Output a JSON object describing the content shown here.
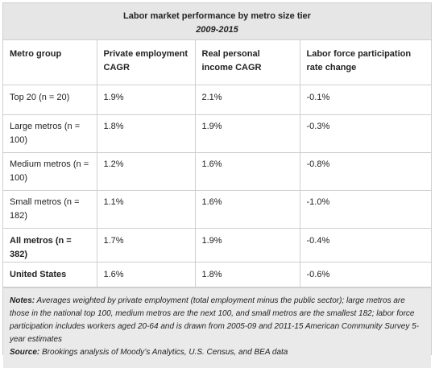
{
  "title": "Labor market performance by metro size tier",
  "subtitle": "2009-2015",
  "headers": [
    "Metro group",
    "Private employment CAGR",
    "Real personal income CAGR",
    "Labor force participation rate change"
  ],
  "rows": [
    {
      "group": "Top 20 (n = 20)",
      "emp": "1.9%",
      "income": "2.1%",
      "lfp": "-0.1%"
    },
    {
      "group": "Large metros (n = 100)",
      "emp": "1.8%",
      "income": "1.9%",
      "lfp": "-0.3%"
    },
    {
      "group": "Medium metros (n = 100)",
      "emp": "1.2%",
      "income": "1.6%",
      "lfp": "-0.8%"
    },
    {
      "group": "Small metros (n = 182)",
      "emp": "1.1%",
      "income": "1.6%",
      "lfp": "-1.0%"
    },
    {
      "group": "All metros (n = 382)",
      "emp": "1.7%",
      "income": "1.9%",
      "lfp": "-0.4%"
    },
    {
      "group": "United States",
      "emp": "1.6%",
      "income": "1.8%",
      "lfp": "-0.6%"
    }
  ],
  "notes": {
    "label": "Notes:",
    "text": "Averages weighted by private employment (total employment minus the public sector); large metros are those in the national top 100, medium metros are the next 100, and small metros are the smallest 182; labor force participation includes workers aged 20-64 and is drawn from 2005-09 and 2011-15 American Community Survey 5-year estimates"
  },
  "source": {
    "label": "Source:",
    "text": "Brookings analysis of Moody’s Analytics, U.S. Census, and BEA data"
  }
}
